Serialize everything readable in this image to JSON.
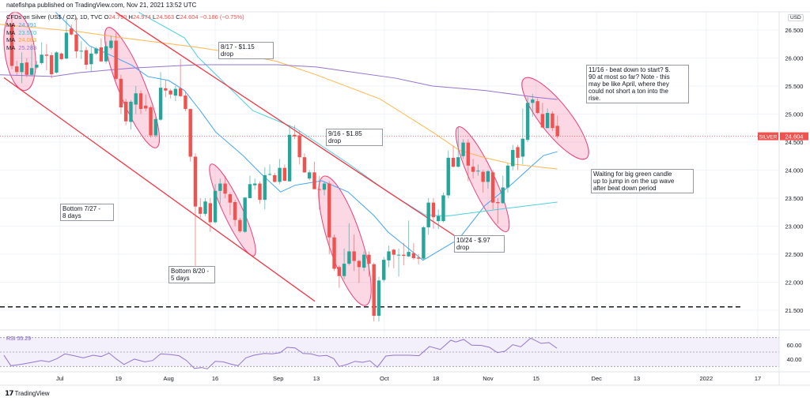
{
  "header": {
    "published": "natefishpa published on TradingView.com, Nov 21, 2021 13:52 UTC"
  },
  "legend": {
    "symbol": "CFDs on Silver (US$ / OZ), 1D, TVC",
    "open_label": "O",
    "open": "24.790",
    "high_label": "H",
    "high": "24.974",
    "low_label": "L",
    "low": "24.563",
    "close_label": "C",
    "close": "24.604",
    "change": "−0.186 (−0.75%)",
    "mas": [
      {
        "label": "MA",
        "value": "24.391",
        "color": "#42a5f5"
      },
      {
        "label": "MA",
        "value": "23.510",
        "color": "#4dd0e1"
      },
      {
        "label": "MA",
        "value": "24.083",
        "color": "#ffb74d"
      },
      {
        "label": "MA",
        "value": "25.283",
        "color": "#9575cd"
      }
    ]
  },
  "price_axis": {
    "currency": "USD",
    "symbol_tag": "SILVER",
    "last_price": "24.604"
  },
  "rsi": {
    "label": "RSI",
    "value": "55.29",
    "ticks": [
      "60.00",
      "40.00"
    ]
  },
  "notes": [
    {
      "text": "8/17 - $1.15\ndrop"
    },
    {
      "text": "9/16 - $1.85\ndrop"
    },
    {
      "text": "11/16 - beat down to start? $.\n90 at most so far? Note - this\nmay be like April, where they\ncould not short a ton into the\nrise."
    },
    {
      "text": "Waiting for big green candle\nup to jump in on the up wave\nafter beat down period"
    },
    {
      "text": "Bottom 7/27 -\n8 days"
    },
    {
      "text": "Bottom 8/20 -\n5 days"
    },
    {
      "text": "10/24 - $.97\ndrop"
    }
  ],
  "footer": {
    "brand": "TradingView"
  },
  "colors": {
    "up": "#26a69a",
    "down": "#ef5350",
    "trend": "#f23645",
    "rsi": "#9575cd",
    "ellipse_fill": "rgba(242,54,120,0.2)",
    "ellipse_stroke": "#ec407a"
  },
  "chart_data": {
    "type": "candlestick",
    "title": "CFDs on Silver (US$ / OZ), 1D, TVC",
    "ylabel": "USD",
    "ylim": [
      21.3,
      26.82
    ],
    "yticks": [
      "26.500",
      "26.000",
      "25.500",
      "25.000",
      "24.500",
      "24.000",
      "23.500",
      "23.000",
      "22.500",
      "22.000",
      "21.500"
    ],
    "xticks": [
      {
        "label": "Jul",
        "index": 9.7
      },
      {
        "label": "19",
        "index": 21.5
      },
      {
        "label": "Aug",
        "index": 31.6
      },
      {
        "label": "16",
        "index": 41
      },
      {
        "label": "Sep",
        "index": 53.7
      },
      {
        "label": "13",
        "index": 61.4
      },
      {
        "label": "Oct",
        "index": 75.1
      },
      {
        "label": "18",
        "index": 85.5
      },
      {
        "label": "Nov",
        "index": 96
      },
      {
        "label": "15",
        "index": 105.7
      },
      {
        "label": "Dec",
        "index": 117.9
      },
      {
        "label": "13",
        "index": 126
      },
      {
        "label": "2022",
        "index": 140
      },
      {
        "label": "17",
        "index": 150.4
      }
    ],
    "grid": true,
    "candles_ohlc": [
      [
        26.6,
        26.75,
        25.8,
        25.86
      ],
      [
        25.85,
        25.95,
        25.7,
        25.75
      ],
      [
        25.75,
        26.1,
        25.55,
        25.91
      ],
      [
        25.92,
        26.0,
        25.66,
        25.7
      ],
      [
        25.7,
        26.25,
        25.68,
        25.82
      ],
      [
        25.83,
        25.95,
        25.8,
        25.88
      ],
      [
        25.91,
        26.28,
        25.88,
        26.06
      ],
      [
        26.06,
        26.25,
        25.78,
        26.04
      ],
      [
        26.05,
        26.1,
        25.64,
        25.71
      ],
      [
        25.74,
        26.12,
        25.72,
        26.1
      ],
      [
        26.08,
        26.1,
        25.96,
        25.98
      ],
      [
        25.99,
        26.7,
        25.98,
        26.45
      ],
      [
        26.53,
        26.6,
        26.4,
        26.42
      ],
      [
        26.42,
        26.72,
        26.0,
        26.12
      ],
      [
        26.12,
        26.3,
        25.98,
        26.13
      ],
      [
        26.14,
        26.2,
        25.8,
        25.88
      ],
      [
        25.89,
        26.2,
        25.75,
        26.08
      ],
      [
        26.08,
        26.2,
        26.05,
        26.17
      ],
      [
        26.19,
        26.35,
        25.93,
        25.94
      ],
      [
        25.94,
        26.3,
        25.9,
        26.21
      ],
      [
        26.18,
        26.4,
        26.15,
        26.31
      ],
      [
        26.31,
        26.45,
        25.6,
        25.63
      ],
      [
        25.63,
        25.7,
        25.0,
        25.12
      ],
      [
        25.22,
        25.27,
        24.8,
        24.87
      ],
      [
        24.86,
        25.25,
        24.72,
        25.22
      ],
      [
        25.17,
        25.5,
        25.0,
        25.37
      ],
      [
        25.37,
        25.42,
        25.0,
        25.09
      ],
      [
        25.15,
        25.35,
        25.05,
        25.1
      ],
      [
        25.12,
        25.15,
        24.58,
        24.62
      ],
      [
        24.62,
        24.95,
        24.58,
        24.91
      ],
      [
        24.9,
        25.75,
        24.88,
        25.47
      ],
      [
        25.46,
        25.6,
        25.3,
        25.42
      ],
      [
        25.42,
        25.45,
        25.28,
        25.35
      ],
      [
        25.33,
        25.5,
        25.23,
        25.45
      ],
      [
        25.46,
        25.98,
        25.3,
        25.32
      ],
      [
        25.33,
        25.4,
        25.05,
        25.09
      ],
      [
        25.09,
        25.1,
        24.15,
        24.24
      ],
      [
        24.24,
        24.3,
        22.29,
        23.35
      ],
      [
        23.34,
        23.5,
        23.15,
        23.22
      ],
      [
        23.22,
        23.5,
        23.18,
        23.44
      ],
      [
        23.41,
        23.5,
        22.9,
        23.07
      ],
      [
        23.07,
        23.75,
        23.05,
        23.63
      ],
      [
        23.63,
        23.85,
        23.4,
        23.76
      ],
      [
        23.76,
        23.9,
        23.5,
        23.58
      ],
      [
        23.57,
        23.6,
        23.2,
        23.42
      ],
      [
        23.43,
        23.47,
        23.0,
        23.11
      ],
      [
        23.11,
        23.15,
        22.88,
        22.91
      ],
      [
        22.9,
        23.52,
        22.88,
        23.51
      ],
      [
        23.5,
        23.9,
        23.5,
        23.75
      ],
      [
        23.73,
        23.85,
        23.65,
        23.76
      ],
      [
        23.76,
        23.8,
        23.4,
        23.47
      ],
      [
        23.47,
        24.05,
        23.3,
        23.91
      ],
      [
        23.92,
        24.1,
        23.9,
        23.93
      ],
      [
        23.91,
        23.95,
        23.78,
        23.79
      ],
      [
        23.79,
        24.2,
        23.75,
        24.04
      ],
      [
        24.04,
        24.1,
        23.8,
        23.81
      ],
      [
        23.8,
        24.8,
        23.8,
        24.63
      ],
      [
        24.63,
        24.8,
        24.55,
        24.6
      ],
      [
        24.62,
        24.7,
        24.1,
        24.23
      ],
      [
        24.23,
        24.3,
        23.95,
        23.96
      ],
      [
        23.85,
        24.0,
        23.82,
        23.96
      ],
      [
        23.96,
        24.15,
        23.66,
        23.66
      ],
      [
        23.66,
        23.9,
        23.3,
        23.65
      ],
      [
        23.65,
        23.8,
        23.55,
        23.76
      ],
      [
        23.76,
        23.8,
        22.5,
        22.8
      ],
      [
        22.8,
        22.85,
        22.2,
        22.24
      ],
      [
        22.27,
        22.3,
        21.9,
        22.11
      ],
      [
        22.11,
        22.6,
        22.05,
        22.33
      ],
      [
        22.33,
        23.05,
        22.3,
        22.55
      ],
      [
        22.55,
        22.85,
        22.2,
        22.38
      ],
      [
        22.38,
        22.4,
        21.99,
        22.27
      ],
      [
        22.26,
        22.55,
        22.2,
        22.49
      ],
      [
        22.49,
        22.55,
        22.1,
        22.33
      ],
      [
        22.32,
        22.35,
        21.3,
        21.4
      ],
      [
        21.4,
        22.1,
        21.3,
        22.03
      ],
      [
        22.04,
        22.45,
        22.0,
        22.4
      ],
      [
        22.39,
        22.65,
        22.27,
        22.55
      ],
      [
        22.58,
        22.6,
        22.25,
        22.49
      ],
      [
        22.48,
        22.6,
        22.1,
        22.49
      ],
      [
        22.49,
        22.7,
        22.3,
        22.47
      ],
      [
        22.46,
        23.1,
        22.45,
        22.54
      ],
      [
        22.52,
        22.7,
        22.4,
        22.43
      ],
      [
        22.44,
        22.5,
        22.32,
        22.42
      ],
      [
        22.42,
        23.0,
        22.4,
        22.98
      ],
      [
        22.98,
        23.5,
        22.85,
        23.42
      ],
      [
        23.42,
        23.5,
        22.95,
        23.16
      ],
      [
        23.09,
        23.3,
        22.95,
        23.18
      ],
      [
        23.09,
        23.6,
        23.07,
        23.55
      ],
      [
        23.55,
        24.35,
        23.5,
        24.22
      ],
      [
        24.22,
        24.43,
        24.05,
        24.06
      ],
      [
        24.06,
        24.77,
        24.05,
        24.23
      ],
      [
        24.25,
        24.55,
        24.2,
        24.49
      ],
      [
        24.49,
        24.55,
        23.8,
        24.08
      ],
      [
        24.06,
        24.2,
        23.85,
        23.97
      ],
      [
        23.98,
        24.1,
        23.9,
        23.99
      ],
      [
        23.97,
        24.0,
        23.6,
        23.79
      ],
      [
        23.79,
        24.0,
        23.67,
        23.98
      ],
      [
        23.96,
        24.0,
        23.3,
        23.42
      ],
      [
        23.43,
        23.5,
        23.04,
        23.41
      ],
      [
        23.41,
        23.9,
        23.4,
        23.69
      ],
      [
        23.69,
        24.12,
        23.6,
        24.08
      ],
      [
        24.07,
        24.45,
        24.0,
        24.36
      ],
      [
        24.41,
        24.45,
        24.0,
        24.22
      ],
      [
        24.24,
        25.1,
        24.1,
        24.56
      ],
      [
        24.54,
        25.3,
        24.5,
        25.2
      ],
      [
        25.2,
        25.36,
        24.95,
        25.26
      ],
      [
        25.23,
        25.28,
        25.0,
        25.02
      ],
      [
        25.0,
        25.2,
        24.75,
        24.76
      ],
      [
        24.75,
        25.1,
        24.75,
        25.02
      ],
      [
        25.01,
        25.05,
        24.7,
        24.75
      ],
      [
        24.79,
        24.974,
        24.563,
        24.604
      ]
    ],
    "moving_averages": [
      {
        "name": "MA 24.391",
        "color": "#42a5f5",
        "points": [
          [
            8.8,
            26.82
          ],
          [
            13.6,
            26.4
          ],
          [
            15.6,
            26.22
          ],
          [
            19.9,
            26.05
          ],
          [
            24.2,
            25.87
          ],
          [
            27.4,
            25.67
          ],
          [
            31.6,
            25.6
          ],
          [
            34.8,
            25.42
          ],
          [
            38,
            25.06
          ],
          [
            41.1,
            24.68
          ],
          [
            46.6,
            24.26
          ],
          [
            50.2,
            23.94
          ],
          [
            54.2,
            23.61
          ],
          [
            57.1,
            23.73
          ],
          [
            62.5,
            23.81
          ],
          [
            67.8,
            23.61
          ],
          [
            73,
            23.19
          ],
          [
            75.8,
            22.9
          ],
          [
            82.9,
            22.39
          ],
          [
            90.1,
            22.77
          ],
          [
            95.4,
            23.37
          ],
          [
            100.8,
            23.75
          ],
          [
            104.9,
            24.08
          ],
          [
            107.2,
            24.26
          ],
          [
            110,
            24.33
          ]
        ]
      },
      {
        "name": "MA 23.510",
        "color": "#4dd0e1",
        "points": [
          [
            25.5,
            26.82
          ],
          [
            34.8,
            26.36
          ],
          [
            37.5,
            26.02
          ],
          [
            48.6,
            25.06
          ],
          [
            57.1,
            24.75
          ],
          [
            67.8,
            24.12
          ],
          [
            75.8,
            23.61
          ],
          [
            83.3,
            23.2
          ],
          [
            87.7,
            23.18
          ],
          [
            98.1,
            23.3
          ],
          [
            110,
            23.43
          ]
        ]
      },
      {
        "name": "MA 24.083",
        "color": "#ffb74d",
        "points": [
          [
            -2.4,
            26.6
          ],
          [
            13.6,
            26.47
          ],
          [
            21.5,
            26.37
          ],
          [
            37.5,
            26.19
          ],
          [
            45.5,
            26.08
          ],
          [
            53.4,
            25.94
          ],
          [
            61.4,
            25.7
          ],
          [
            74.2,
            25.27
          ],
          [
            84.8,
            24.68
          ],
          [
            90.1,
            24.36
          ],
          [
            95.4,
            24.22
          ],
          [
            100.8,
            24.11
          ],
          [
            110,
            24.02
          ]
        ]
      },
      {
        "name": "MA 25.283",
        "color": "#9575cd",
        "points": [
          [
            -2.4,
            25.7
          ],
          [
            8.3,
            25.67
          ],
          [
            13.6,
            25.74
          ],
          [
            24.2,
            25.82
          ],
          [
            37.5,
            25.88
          ],
          [
            53.4,
            25.88
          ],
          [
            61.4,
            25.84
          ],
          [
            69.4,
            25.74
          ],
          [
            77.4,
            25.64
          ],
          [
            84.8,
            25.5
          ],
          [
            95.4,
            25.42
          ],
          [
            105.7,
            25.3
          ],
          [
            110,
            25.26
          ]
        ]
      }
    ],
    "trendlines": [
      {
        "from": [
          -1.6,
          25.65
        ],
        "to": [
          61.1,
          21.66
        ]
      },
      {
        "from": [
          20.9,
          26.82
        ],
        "to": [
          89.6,
          22.81
        ]
      }
    ],
    "horizontal_line": {
      "price": 21.56,
      "from_index": -2.4,
      "to_index": 147.5,
      "style": "dashed"
    },
    "rsi_series": {
      "ylim": [
        30,
        70
      ],
      "bands": [
        70,
        50,
        30
      ],
      "points": [
        [
          -1.6,
          45.6
        ],
        [
          -0.2,
          31.1
        ],
        [
          1.8,
          32.9
        ],
        [
          3.8,
          35.4
        ],
        [
          5.9,
          38.3
        ],
        [
          7.5,
          36.5
        ],
        [
          9.1,
          40.9
        ],
        [
          10.7,
          47.5
        ],
        [
          12.8,
          44.5
        ],
        [
          14.4,
          42
        ],
        [
          16.4,
          45.6
        ],
        [
          18,
          43.8
        ],
        [
          19.6,
          48.6
        ],
        [
          21.1,
          40.2
        ],
        [
          22.6,
          32.9
        ],
        [
          24.7,
          40.2
        ],
        [
          26.8,
          36.5
        ],
        [
          28.4,
          38.3
        ],
        [
          30,
          47.5
        ],
        [
          32.1,
          46.4
        ],
        [
          33.7,
          44.9
        ],
        [
          35.2,
          38.3
        ],
        [
          36.8,
          27.4
        ],
        [
          38.3,
          28.5
        ],
        [
          39.4,
          26.7
        ],
        [
          41,
          37.2
        ],
        [
          42.6,
          36.5
        ],
        [
          44,
          33.6
        ],
        [
          45.6,
          31.1
        ],
        [
          47.2,
          42
        ],
        [
          48.8,
          45.6
        ],
        [
          50.9,
          48.1
        ],
        [
          52.5,
          47.5
        ],
        [
          54.1,
          49.2
        ],
        [
          55.5,
          56.6
        ],
        [
          57.1,
          55.8
        ],
        [
          58.7,
          48.1
        ],
        [
          60.3,
          47.5
        ],
        [
          61.9,
          44.5
        ],
        [
          63.5,
          45.3
        ],
        [
          64.9,
          40.9
        ],
        [
          66,
          30
        ],
        [
          67.6,
          32.9
        ],
        [
          69.2,
          37.2
        ],
        [
          70.7,
          35.8
        ],
        [
          72.2,
          38
        ],
        [
          73.7,
          29
        ],
        [
          75.4,
          44.5
        ],
        [
          77,
          45.6
        ],
        [
          80.1,
          45.6
        ],
        [
          82.1,
          44.9
        ],
        [
          84.2,
          57.7
        ],
        [
          86.4,
          53.6
        ],
        [
          88.5,
          66.4
        ],
        [
          89.5,
          63.9
        ],
        [
          91.1,
          67.5
        ],
        [
          92.7,
          59.5
        ],
        [
          94.7,
          59.1
        ],
        [
          96.3,
          56.6
        ],
        [
          97.9,
          49.2
        ],
        [
          99.4,
          51.1
        ],
        [
          101,
          60.2
        ],
        [
          102.6,
          57.3
        ],
        [
          104.6,
          69.3
        ],
        [
          106.7,
          62
        ],
        [
          108.3,
          63.1
        ],
        [
          109.9,
          55.3
        ]
      ]
    }
  }
}
